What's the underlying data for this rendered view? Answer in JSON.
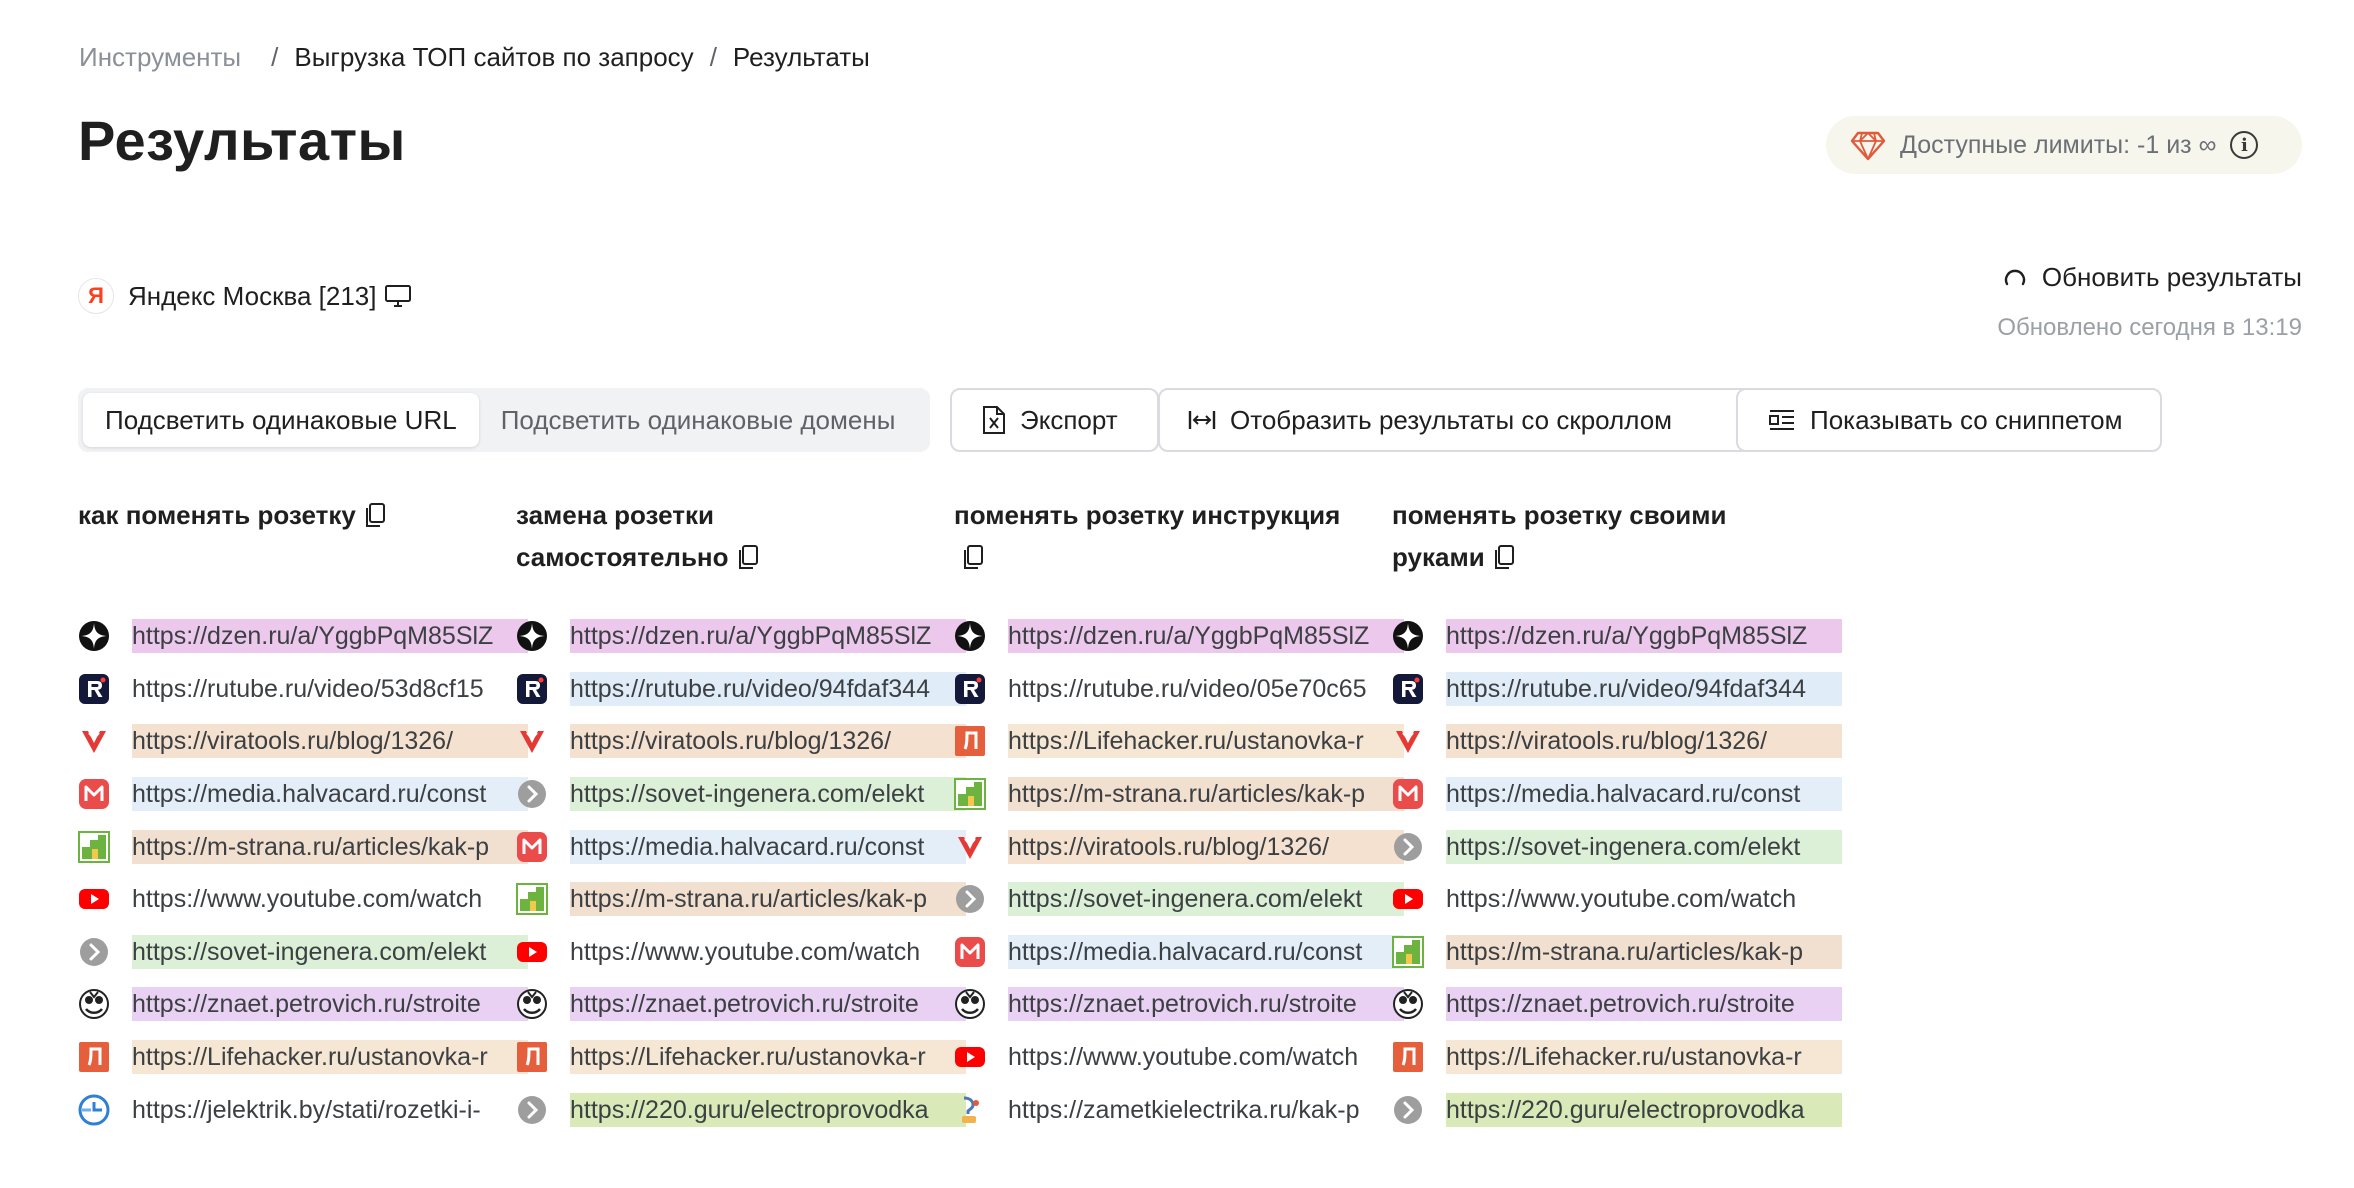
{
  "breadcrumb": {
    "root": "Инструменты",
    "tool": "Выгрузка ТОП сайтов по запросу",
    "current": "Результаты"
  },
  "page_title": "Результаты",
  "limits": {
    "text": "Доступные лимиты: -1 из ∞",
    "icon": "gem-icon",
    "info_icon": "info-icon"
  },
  "region": {
    "logo": "Я",
    "name": "Яндекс Москва [213]",
    "device_icon": "monitor-icon"
  },
  "refresh": {
    "label": "Обновить результаты",
    "updated": "Обновлено сегодня в 13:19"
  },
  "highlight": {
    "same_url": "Подсветить одинаковые URL",
    "same_domain": "Подсветить одинаковые домены",
    "active": "same_url"
  },
  "toolbar": {
    "export": "Экспорт",
    "scroll": "Отобразить результаты со скроллом",
    "snippet": "Показывать со сниппетом"
  },
  "colors": {
    "accent_gem": "#e05a3a",
    "limits_bg": "#f7f6ec",
    "yandex_red": "#fc3f1d"
  },
  "columns": [
    {
      "query": "как поменять розетку",
      "results": [
        {
          "site": "dzen",
          "url": "https://dzen.ru/a/YggbPqM85SlZ"
        },
        {
          "site": "rutube",
          "url": "https://rutube.ru/video/53d8cf15"
        },
        {
          "site": "viratools",
          "url": "https://viratools.ru/blog/1326/"
        },
        {
          "site": "halva",
          "url": "https://media.halvacard.ru/const"
        },
        {
          "site": "mstrana",
          "url": "https://m-strana.ru/articles/kak-p"
        },
        {
          "site": "youtube",
          "url": "https://www.youtube.com/watch"
        },
        {
          "site": "sovet",
          "url": "https://sovet-ingenera.com/elekt"
        },
        {
          "site": "petrovich",
          "url": "https://znaet.petrovich.ru/stroite"
        },
        {
          "site": "lifehacker",
          "url": "https://Lifehacker.ru/ustanovka-r"
        },
        {
          "site": "jelektrik",
          "url": "https://jelektrik.by/stati/rozetki-i-"
        }
      ]
    },
    {
      "query": "замена розетки самостоятельно",
      "results": [
        {
          "site": "dzen",
          "url": "https://dzen.ru/a/YggbPqM85SlZ"
        },
        {
          "site": "rutube",
          "url": "https://rutube.ru/video/94fdaf344"
        },
        {
          "site": "viratools",
          "url": "https://viratools.ru/blog/1326/"
        },
        {
          "site": "sovet",
          "url": "https://sovet-ingenera.com/elekt"
        },
        {
          "site": "halva",
          "url": "https://media.halvacard.ru/const"
        },
        {
          "site": "mstrana",
          "url": "https://m-strana.ru/articles/kak-p"
        },
        {
          "site": "youtube",
          "url": "https://www.youtube.com/watch"
        },
        {
          "site": "petrovich",
          "url": "https://znaet.petrovich.ru/stroite"
        },
        {
          "site": "lifehacker",
          "url": "https://Lifehacker.ru/ustanovka-r"
        },
        {
          "site": "220",
          "url": "https://220.guru/electroprovodka"
        }
      ]
    },
    {
      "query": "поменять розетку инструкция",
      "results": [
        {
          "site": "dzen",
          "url": "https://dzen.ru/a/YggbPqM85SlZ"
        },
        {
          "site": "rutube",
          "url": "https://rutube.ru/video/05e70c65"
        },
        {
          "site": "lifehacker",
          "url": "https://Lifehacker.ru/ustanovka-r"
        },
        {
          "site": "mstrana",
          "url": "https://m-strana.ru/articles/kak-p"
        },
        {
          "site": "viratools",
          "url": "https://viratools.ru/blog/1326/"
        },
        {
          "site": "sovet",
          "url": "https://sovet-ingenera.com/elekt"
        },
        {
          "site": "halva",
          "url": "https://media.halvacard.ru/const"
        },
        {
          "site": "petrovich",
          "url": "https://znaet.petrovich.ru/stroite"
        },
        {
          "site": "youtube",
          "url": "https://www.youtube.com/watch"
        },
        {
          "site": "zametki",
          "url": "https://zametkielectrika.ru/kak-p"
        }
      ]
    },
    {
      "query": "поменять розетку своими руками",
      "results": [
        {
          "site": "dzen",
          "url": "https://dzen.ru/a/YggbPqM85SlZ"
        },
        {
          "site": "rutube",
          "url": "https://rutube.ru/video/94fdaf344"
        },
        {
          "site": "viratools",
          "url": "https://viratools.ru/blog/1326/"
        },
        {
          "site": "halva",
          "url": "https://media.halvacard.ru/const"
        },
        {
          "site": "sovet",
          "url": "https://sovet-ingenera.com/elekt"
        },
        {
          "site": "youtube",
          "url": "https://www.youtube.com/watch"
        },
        {
          "site": "mstrana",
          "url": "https://m-strana.ru/articles/kak-p"
        },
        {
          "site": "petrovich",
          "url": "https://znaet.petrovich.ru/stroite"
        },
        {
          "site": "lifehacker",
          "url": "https://Lifehacker.ru/ustanovka-r"
        },
        {
          "site": "220",
          "url": "https://220.guru/electroprovodka"
        }
      ]
    }
  ]
}
